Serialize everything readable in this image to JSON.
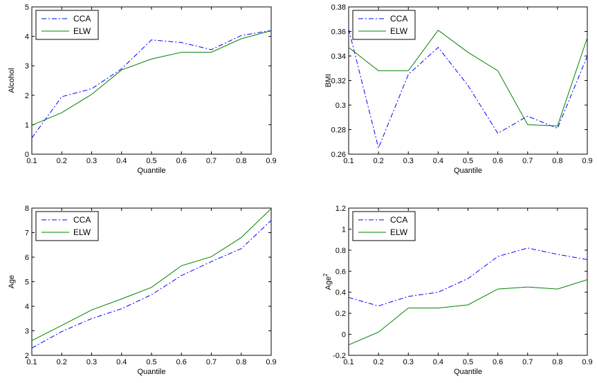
{
  "chart_data": [
    {
      "type": "line",
      "xlabel": "Quantile",
      "ylabel": "Alcohol",
      "xlim": [
        0.1,
        0.9
      ],
      "ylim": [
        0,
        5
      ],
      "x_ticks": [
        "0.1",
        "0.2",
        "0.3",
        "0.4",
        "0.5",
        "0.6",
        "0.7",
        "0.8",
        "0.9"
      ],
      "y_ticks": [
        "0",
        "1",
        "2",
        "3",
        "4",
        "5"
      ],
      "x": [
        0.1,
        0.2,
        0.3,
        0.4,
        0.5,
        0.6,
        0.7,
        0.8,
        0.9
      ],
      "legend_position": "top-left",
      "grid": false,
      "series": [
        {
          "name": "CCA",
          "color": "#0000ff",
          "style": "dash-dot",
          "values": [
            0.55,
            1.95,
            2.22,
            2.9,
            3.88,
            3.79,
            3.55,
            4.03,
            4.2
          ]
        },
        {
          "name": "ELW",
          "color": "#008000",
          "style": "solid",
          "values": [
            0.98,
            1.41,
            2.03,
            2.86,
            3.23,
            3.46,
            3.46,
            3.92,
            4.19
          ]
        }
      ]
    },
    {
      "type": "line",
      "xlabel": "Quantile",
      "ylabel": "BMI",
      "xlim": [
        0.1,
        0.9
      ],
      "ylim": [
        0.26,
        0.38
      ],
      "x_ticks": [
        "0.1",
        "0.2",
        "0.3",
        "0.4",
        "0.5",
        "0.6",
        "0.7",
        "0.8",
        "0.9"
      ],
      "y_ticks": [
        "0.26",
        "0.28",
        "0.3",
        "0.32",
        "0.34",
        "0.36",
        "0.38"
      ],
      "x": [
        0.1,
        0.2,
        0.3,
        0.4,
        0.5,
        0.6,
        0.7,
        0.8,
        0.9
      ],
      "legend_position": "top-left",
      "grid": false,
      "series": [
        {
          "name": "CCA",
          "color": "#0000ff",
          "style": "dash-dot",
          "values": [
            0.362,
            0.265,
            0.325,
            0.347,
            0.316,
            0.277,
            0.291,
            0.281,
            0.34
          ]
        },
        {
          "name": "ELW",
          "color": "#008000",
          "style": "solid",
          "values": [
            0.347,
            0.328,
            0.328,
            0.361,
            0.343,
            0.328,
            0.284,
            0.283,
            0.355
          ]
        }
      ]
    },
    {
      "type": "line",
      "xlabel": "Quantile",
      "ylabel": "Age",
      "xlim": [
        0.1,
        0.9
      ],
      "ylim": [
        2,
        8
      ],
      "x_ticks": [
        "0.1",
        "0.2",
        "0.3",
        "0.4",
        "0.5",
        "0.6",
        "0.7",
        "0.8",
        "0.9"
      ],
      "y_ticks": [
        "2",
        "3",
        "4",
        "5",
        "6",
        "7",
        "8"
      ],
      "x": [
        0.1,
        0.2,
        0.3,
        0.4,
        0.5,
        0.6,
        0.7,
        0.8,
        0.9
      ],
      "legend_position": "top-left",
      "grid": false,
      "series": [
        {
          "name": "CCA",
          "color": "#0000ff",
          "style": "dash-dot",
          "values": [
            2.3,
            2.97,
            3.5,
            3.9,
            4.47,
            5.25,
            5.82,
            6.35,
            7.5
          ]
        },
        {
          "name": "ELW",
          "color": "#008000",
          "style": "solid",
          "values": [
            2.6,
            3.22,
            3.85,
            4.3,
            4.77,
            5.65,
            6.02,
            6.8,
            7.98
          ]
        }
      ]
    },
    {
      "type": "line",
      "xlabel": "Quantile",
      "ylabel": "Age",
      "ylabel_superscript": "2",
      "xlim": [
        0.1,
        0.9
      ],
      "ylim": [
        -0.2,
        1.2
      ],
      "x_ticks": [
        "0.1",
        "0.2",
        "0.3",
        "0.4",
        "0.5",
        "0.6",
        "0.7",
        "0.8",
        "0.9"
      ],
      "y_ticks": [
        "-0.2",
        "0",
        "0.2",
        "0.4",
        "0.6",
        "0.8",
        "1",
        "1.2"
      ],
      "x": [
        0.1,
        0.2,
        0.3,
        0.4,
        0.5,
        0.6,
        0.7,
        0.8,
        0.9
      ],
      "legend_position": "top-left",
      "grid": false,
      "series": [
        {
          "name": "CCA",
          "color": "#0000ff",
          "style": "dash-dot",
          "values": [
            0.35,
            0.27,
            0.36,
            0.4,
            0.53,
            0.74,
            0.82,
            0.76,
            0.71
          ]
        },
        {
          "name": "ELW",
          "color": "#008000",
          "style": "solid",
          "values": [
            -0.1,
            0.02,
            0.25,
            0.25,
            0.28,
            0.43,
            0.45,
            0.43,
            0.52
          ]
        }
      ]
    }
  ]
}
